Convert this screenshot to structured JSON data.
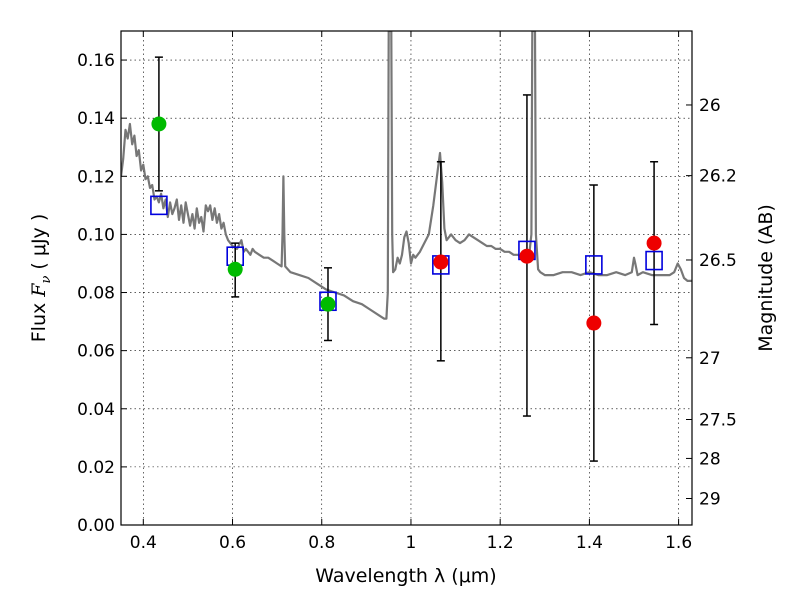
{
  "chart_data": {
    "type": "scatter",
    "xlabel": "Wavelength  λ (μm)",
    "ylabel": "Flux  F_ν  ( μJy )",
    "y2label": "Magnitude (AB)",
    "xlim": [
      0.35,
      1.63
    ],
    "ylim": [
      0.0,
      0.17
    ],
    "grid": true,
    "x_ticks": [
      {
        "value": 0.4,
        "label": "0.4"
      },
      {
        "value": 0.6,
        "label": "0.6"
      },
      {
        "value": 0.8,
        "label": "0.8"
      },
      {
        "value": 1.0,
        "label": "1"
      },
      {
        "value": 1.2,
        "label": "1.2"
      },
      {
        "value": 1.4,
        "label": "1.4"
      },
      {
        "value": 1.6,
        "label": "1.6"
      }
    ],
    "y_ticks": [
      {
        "value": 0.0,
        "label": "0.00"
      },
      {
        "value": 0.02,
        "label": "0.02"
      },
      {
        "value": 0.04,
        "label": "0.04"
      },
      {
        "value": 0.06,
        "label": "0.06"
      },
      {
        "value": 0.08,
        "label": "0.08"
      },
      {
        "value": 0.1,
        "label": "0.10"
      },
      {
        "value": 0.12,
        "label": "0.12"
      },
      {
        "value": 0.14,
        "label": "0.14"
      },
      {
        "value": 0.16,
        "label": "0.16"
      }
    ],
    "mag_ticks": [
      {
        "value": 26,
        "label": "26"
      },
      {
        "value": 26.2,
        "label": "26.2"
      },
      {
        "value": 26.5,
        "label": "26.5"
      },
      {
        "value": 27,
        "label": "27"
      },
      {
        "value": 27.5,
        "label": "27.5"
      },
      {
        "value": 28,
        "label": "28"
      },
      {
        "value": 29,
        "label": "29"
      }
    ],
    "series": [
      {
        "marker": "circle",
        "color": "#00bb00",
        "points": [
          {
            "x": 0.435,
            "y": 0.138,
            "err_low": 0.115,
            "err_high": 0.161
          },
          {
            "x": 0.606,
            "y": 0.088,
            "err_low": 0.0785,
            "err_high": 0.097
          },
          {
            "x": 0.814,
            "y": 0.076,
            "err_low": 0.0635,
            "err_high": 0.0885
          }
        ]
      },
      {
        "marker": "circle",
        "color": "#ee0000",
        "points": [
          {
            "x": 1.067,
            "y": 0.0905,
            "err_low": 0.0565,
            "err_high": 0.125
          },
          {
            "x": 1.26,
            "y": 0.0925,
            "err_low": 0.0375,
            "err_high": 0.148
          },
          {
            "x": 1.41,
            "y": 0.0695,
            "err_low": 0.022,
            "err_high": 0.117
          },
          {
            "x": 1.545,
            "y": 0.097,
            "err_low": 0.069,
            "err_high": 0.125
          }
        ]
      },
      {
        "marker": "square",
        "color": "#0000dd",
        "points": [
          {
            "x": 0.435,
            "y": 0.11
          },
          {
            "x": 0.606,
            "y": 0.0925
          },
          {
            "x": 0.814,
            "y": 0.077
          },
          {
            "x": 1.067,
            "y": 0.0895
          },
          {
            "x": 1.26,
            "y": 0.0945
          },
          {
            "x": 1.41,
            "y": 0.0895
          },
          {
            "x": 1.545,
            "y": 0.091
          }
        ]
      }
    ],
    "spectrum": {
      "color": "#777777",
      "points": [
        [
          0.35,
          0.12
        ],
        [
          0.355,
          0.126
        ],
        [
          0.36,
          0.136
        ],
        [
          0.365,
          0.133
        ],
        [
          0.37,
          0.138
        ],
        [
          0.375,
          0.131
        ],
        [
          0.38,
          0.134
        ],
        [
          0.385,
          0.127
        ],
        [
          0.39,
          0.129
        ],
        [
          0.395,
          0.122
        ],
        [
          0.4,
          0.124
        ],
        [
          0.405,
          0.119
        ],
        [
          0.41,
          0.12
        ],
        [
          0.415,
          0.116
        ],
        [
          0.42,
          0.117
        ],
        [
          0.425,
          0.112
        ],
        [
          0.43,
          0.113
        ],
        [
          0.435,
          0.111
        ],
        [
          0.44,
          0.114
        ],
        [
          0.445,
          0.109
        ],
        [
          0.45,
          0.112
        ],
        [
          0.455,
          0.106
        ],
        [
          0.46,
          0.111
        ],
        [
          0.465,
          0.107
        ],
        [
          0.47,
          0.109
        ],
        [
          0.475,
          0.112
        ],
        [
          0.48,
          0.105
        ],
        [
          0.485,
          0.11
        ],
        [
          0.49,
          0.104
        ],
        [
          0.495,
          0.111
        ],
        [
          0.5,
          0.107
        ],
        [
          0.505,
          0.103
        ],
        [
          0.51,
          0.107
        ],
        [
          0.515,
          0.102
        ],
        [
          0.52,
          0.109
        ],
        [
          0.525,
          0.104
        ],
        [
          0.53,
          0.106
        ],
        [
          0.535,
          0.101
        ],
        [
          0.54,
          0.11
        ],
        [
          0.545,
          0.108
        ],
        [
          0.55,
          0.11
        ],
        [
          0.555,
          0.105
        ],
        [
          0.56,
          0.109
        ],
        [
          0.565,
          0.104
        ],
        [
          0.57,
          0.107
        ],
        [
          0.575,
          0.102
        ],
        [
          0.58,
          0.104
        ],
        [
          0.585,
          0.1
        ],
        [
          0.59,
          0.098
        ],
        [
          0.595,
          0.097
        ],
        [
          0.6,
          0.096
        ],
        [
          0.61,
          0.095
        ],
        [
          0.62,
          0.098
        ],
        [
          0.625,
          0.094
        ],
        [
          0.63,
          0.095
        ],
        [
          0.64,
          0.093
        ],
        [
          0.645,
          0.095
        ],
        [
          0.65,
          0.094
        ],
        [
          0.66,
          0.093
        ],
        [
          0.67,
          0.092
        ],
        [
          0.68,
          0.092
        ],
        [
          0.69,
          0.091
        ],
        [
          0.7,
          0.09
        ],
        [
          0.71,
          0.089
        ],
        [
          0.712,
          0.1
        ],
        [
          0.714,
          0.12
        ],
        [
          0.716,
          0.1
        ],
        [
          0.718,
          0.089
        ],
        [
          0.73,
          0.087
        ],
        [
          0.75,
          0.086
        ],
        [
          0.77,
          0.085
        ],
        [
          0.79,
          0.083
        ],
        [
          0.81,
          0.081
        ],
        [
          0.83,
          0.08
        ],
        [
          0.85,
          0.079
        ],
        [
          0.87,
          0.077
        ],
        [
          0.89,
          0.076
        ],
        [
          0.91,
          0.074
        ],
        [
          0.93,
          0.072
        ],
        [
          0.94,
          0.071
        ],
        [
          0.945,
          0.071
        ],
        [
          0.948,
          0.08
        ],
        [
          0.95,
          0.17
        ],
        [
          0.952,
          0.17
        ],
        [
          0.954,
          0.17
        ],
        [
          0.956,
          0.17
        ],
        [
          0.958,
          0.1
        ],
        [
          0.96,
          0.087
        ],
        [
          0.965,
          0.088
        ],
        [
          0.97,
          0.092
        ],
        [
          0.975,
          0.09
        ],
        [
          0.98,
          0.093
        ],
        [
          0.985,
          0.099
        ],
        [
          0.99,
          0.101
        ],
        [
          0.995,
          0.097
        ],
        [
          1.0,
          0.09
        ],
        [
          1.005,
          0.093
        ],
        [
          1.01,
          0.092
        ],
        [
          1.02,
          0.094
        ],
        [
          1.03,
          0.097
        ],
        [
          1.04,
          0.1
        ],
        [
          1.05,
          0.11
        ],
        [
          1.06,
          0.122
        ],
        [
          1.065,
          0.128
        ],
        [
          1.07,
          0.118
        ],
        [
          1.075,
          0.102
        ],
        [
          1.08,
          0.098
        ],
        [
          1.09,
          0.1
        ],
        [
          1.1,
          0.098
        ],
        [
          1.11,
          0.097
        ],
        [
          1.12,
          0.098
        ],
        [
          1.13,
          0.1
        ],
        [
          1.14,
          0.099
        ],
        [
          1.15,
          0.098
        ],
        [
          1.16,
          0.097
        ],
        [
          1.17,
          0.096
        ],
        [
          1.18,
          0.096
        ],
        [
          1.19,
          0.095
        ],
        [
          1.2,
          0.095
        ],
        [
          1.21,
          0.094
        ],
        [
          1.22,
          0.094
        ],
        [
          1.23,
          0.093
        ],
        [
          1.24,
          0.093
        ],
        [
          1.25,
          0.092
        ],
        [
          1.26,
          0.092
        ],
        [
          1.265,
          0.093
        ],
        [
          1.27,
          0.1
        ],
        [
          1.272,
          0.17
        ],
        [
          1.275,
          0.17
        ],
        [
          1.278,
          0.17
        ],
        [
          1.28,
          0.1
        ],
        [
          1.285,
          0.088
        ],
        [
          1.29,
          0.087
        ],
        [
          1.3,
          0.086
        ],
        [
          1.32,
          0.086
        ],
        [
          1.34,
          0.087
        ],
        [
          1.36,
          0.087
        ],
        [
          1.38,
          0.086
        ],
        [
          1.4,
          0.087
        ],
        [
          1.42,
          0.086
        ],
        [
          1.44,
          0.086
        ],
        [
          1.46,
          0.087
        ],
        [
          1.48,
          0.086
        ],
        [
          1.495,
          0.087
        ],
        [
          1.5,
          0.092
        ],
        [
          1.503,
          0.09
        ],
        [
          1.508,
          0.086
        ],
        [
          1.52,
          0.087
        ],
        [
          1.54,
          0.086
        ],
        [
          1.56,
          0.086
        ],
        [
          1.58,
          0.086
        ],
        [
          1.59,
          0.087
        ],
        [
          1.598,
          0.09
        ],
        [
          1.605,
          0.088
        ],
        [
          1.612,
          0.085
        ],
        [
          1.62,
          0.084
        ],
        [
          1.63,
          0.084
        ]
      ]
    }
  }
}
